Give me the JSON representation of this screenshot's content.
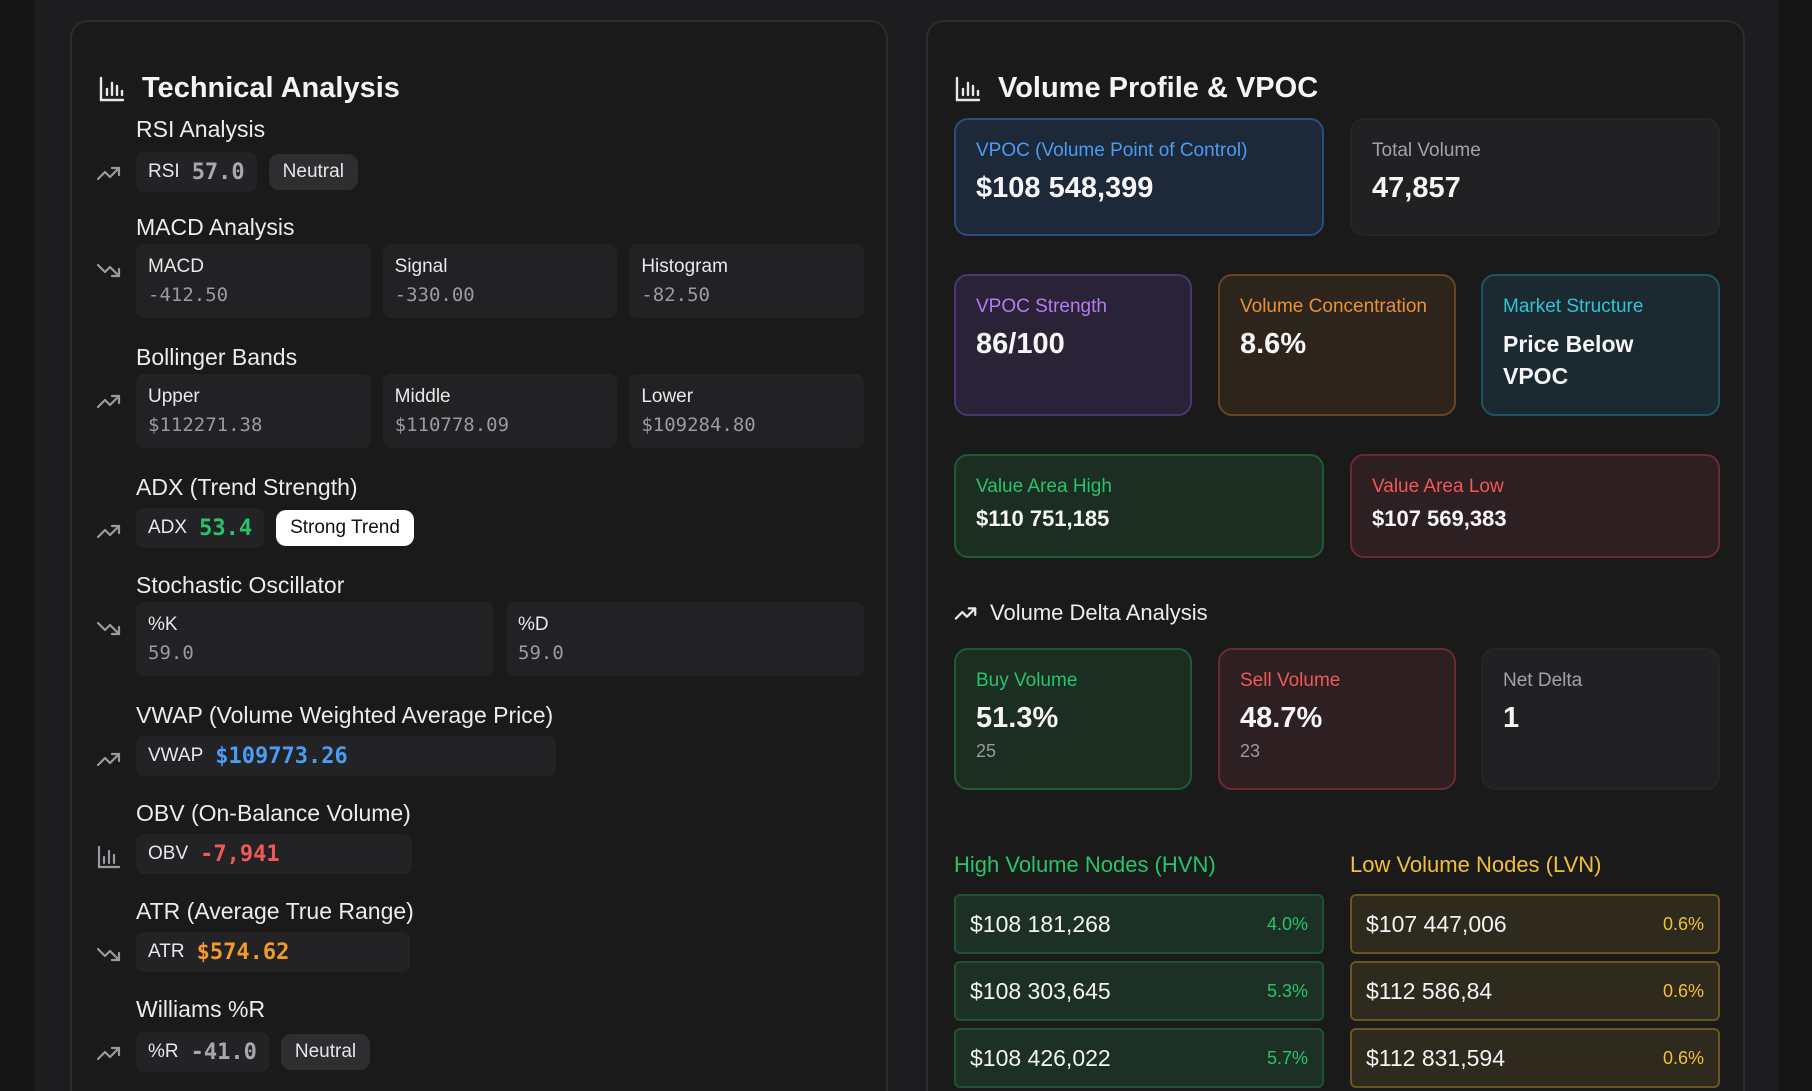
{
  "colors": {
    "green": "#27c46b",
    "red": "#f25858",
    "blue": "#4b9cf5",
    "orange": "#f29a2e",
    "yellow": "#f2c037"
  },
  "technical": {
    "title": "Technical Analysis",
    "rsi": {
      "title": "RSI Analysis",
      "label": "RSI",
      "value": "57.0",
      "status": "Neutral"
    },
    "macd": {
      "title": "MACD Analysis",
      "items": [
        {
          "label": "MACD",
          "value": "-412.50"
        },
        {
          "label": "Signal",
          "value": "-330.00"
        },
        {
          "label": "Histogram",
          "value": "-82.50"
        }
      ]
    },
    "bollinger": {
      "title": "Bollinger Bands",
      "items": [
        {
          "label": "Upper",
          "value": "$112271.38"
        },
        {
          "label": "Middle",
          "value": "$110778.09"
        },
        {
          "label": "Lower",
          "value": "$109284.80"
        }
      ]
    },
    "adx": {
      "title": "ADX (Trend Strength)",
      "label": "ADX",
      "value": "53.4",
      "status": "Strong Trend"
    },
    "stochastic": {
      "title": "Stochastic Oscillator",
      "items": [
        {
          "label": "%K",
          "value": "59.0"
        },
        {
          "label": "%D",
          "value": "59.0"
        }
      ]
    },
    "vwap": {
      "title": "VWAP (Volume Weighted Average Price)",
      "label": "VWAP",
      "value": "$109773.26"
    },
    "obv": {
      "title": "OBV (On-Balance Volume)",
      "label": "OBV",
      "value": "-7,941"
    },
    "atr": {
      "title": "ATR (Average True Range)",
      "label": "ATR",
      "value": "$574.62"
    },
    "williams": {
      "title": "Williams %R",
      "label": "%R",
      "value": "-41.0",
      "status": "Neutral"
    }
  },
  "volume": {
    "title": "Volume Profile & VPOC",
    "vpoc": {
      "label": "VPOC (Volume Point of Control)",
      "value": "$108 548,399"
    },
    "total": {
      "label": "Total Volume",
      "value": "47,857"
    },
    "strength": {
      "label": "VPOC Strength",
      "value": "86/100"
    },
    "concentration": {
      "label": "Volume Concentration",
      "value": "8.6%"
    },
    "structure": {
      "label": "Market Structure",
      "value": "Price Below VPOC"
    },
    "vah": {
      "label": "Value Area High",
      "value": "$110 751,185"
    },
    "val": {
      "label": "Value Area Low",
      "value": "$107 569,383"
    },
    "delta": {
      "title": "Volume Delta Analysis",
      "buy": {
        "label": "Buy Volume",
        "value": "51.3%",
        "count": "25"
      },
      "sell": {
        "label": "Sell Volume",
        "value": "48.7%",
        "count": "23"
      },
      "net": {
        "label": "Net Delta",
        "value": "1"
      }
    },
    "hvn": {
      "title": "High Volume Nodes (HVN)",
      "nodes": [
        {
          "price": "$108 181,268",
          "pct": "4.0%"
        },
        {
          "price": "$108 303,645",
          "pct": "5.3%"
        },
        {
          "price": "$108 426,022",
          "pct": "5.7%"
        }
      ]
    },
    "lvn": {
      "title": "Low Volume Nodes (LVN)",
      "nodes": [
        {
          "price": "$107 447,006",
          "pct": "0.6%"
        },
        {
          "price": "$112 586,84",
          "pct": "0.6%"
        },
        {
          "price": "$112 831,594",
          "pct": "0.6%"
        }
      ]
    }
  }
}
